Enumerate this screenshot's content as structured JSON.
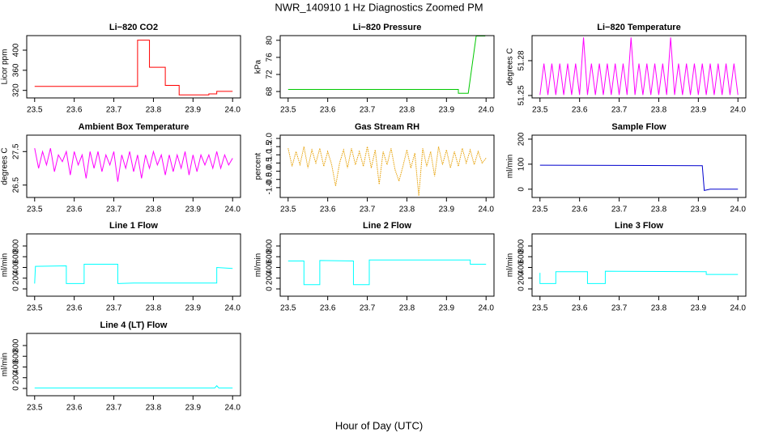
{
  "title": "NWR_140910  1 Hz Diagnostics Zoomed PM",
  "xlabel": "Hour of Day (UTC)",
  "chart_data": [
    {
      "type": "line",
      "title": "Li−820 CO2",
      "ylabel": "Licor ppm",
      "color": "#ff0000",
      "x": [
        23.5,
        23.76,
        23.76,
        23.79,
        23.79,
        23.83,
        23.83,
        23.865,
        23.865,
        23.94,
        23.94,
        23.96,
        23.96,
        24.0
      ],
      "values": [
        328,
        328,
        420,
        420,
        366,
        366,
        330,
        330,
        311,
        311,
        313,
        313,
        318,
        318
      ],
      "xlim": [
        23.48,
        24.02
      ],
      "ylim": [
        305,
        429
      ],
      "yticks": [
        320,
        360,
        400
      ],
      "xticks": [
        23.5,
        23.6,
        23.7,
        23.8,
        23.9,
        {
          "value": 24,
          "label": "24.0"
        }
      ]
    },
    {
      "type": "line",
      "title": "Li−820 Pressure",
      "ylabel": "kPa",
      "color": "#00c800",
      "x": [
        23.5,
        23.93,
        23.93,
        23.955,
        23.975,
        23.998
      ],
      "values": [
        68.5,
        68.5,
        67.6,
        67.6,
        81,
        81
      ],
      "xlim": [
        23.48,
        24.02
      ],
      "ylim": [
        66.5,
        81.1
      ],
      "yticks": [
        68,
        72,
        76,
        80
      ],
      "xticks": [
        23.5,
        23.6,
        23.7,
        23.8,
        23.9,
        {
          "value": 24,
          "label": "24.0"
        }
      ]
    },
    {
      "type": "line",
      "title": "Li−820 Temperature",
      "ylabel": "degrees C",
      "color": "#ff00ff",
      "x": [
        23.5,
        23.51,
        23.52,
        23.53,
        23.54,
        23.55,
        23.56,
        23.57,
        23.58,
        23.59,
        23.6,
        23.61,
        23.62,
        23.63,
        23.64,
        23.65,
        23.66,
        23.67,
        23.68,
        23.69,
        23.7,
        23.71,
        23.72,
        23.73,
        23.74,
        23.75,
        23.76,
        23.77,
        23.78,
        23.79,
        23.8,
        23.81,
        23.82,
        23.83,
        23.84,
        23.85,
        23.86,
        23.87,
        23.88,
        23.89,
        23.9,
        23.91,
        23.92,
        23.93,
        23.94,
        23.95,
        23.96,
        23.97,
        23.98,
        23.99,
        24.0
      ],
      "values": [
        51.2505,
        51.2775,
        51.2505,
        51.2775,
        51.2505,
        51.2775,
        51.2505,
        51.2775,
        51.2505,
        51.2775,
        51.2505,
        51.3,
        51.2505,
        51.2775,
        51.2505,
        51.2775,
        51.2505,
        51.2775,
        51.2505,
        51.2775,
        51.2505,
        51.2775,
        51.2505,
        51.3,
        51.2505,
        51.2775,
        51.2505,
        51.2775,
        51.2505,
        51.2775,
        51.2505,
        51.2775,
        51.2505,
        51.3,
        51.2505,
        51.2775,
        51.2505,
        51.2775,
        51.2505,
        51.2775,
        51.2505,
        51.2775,
        51.2505,
        51.2775,
        51.2505,
        51.2775,
        51.2505,
        51.2775,
        51.2505,
        51.2775,
        51.2505
      ],
      "xlim": [
        23.48,
        24.02
      ],
      "ylim": [
        51.2479,
        51.3016
      ],
      "yticks": [
        51.25,
        51.28
      ],
      "xticks": [
        23.5,
        23.6,
        23.7,
        23.8,
        23.9,
        {
          "value": 24,
          "label": "24.0"
        }
      ]
    },
    {
      "type": "line",
      "title": "Ambient Box Temperature",
      "ylabel": "degrees C",
      "color": "#ff00ff",
      "x": [
        23.5,
        23.51,
        23.52,
        23.53,
        23.54,
        23.55,
        23.56,
        23.57,
        23.58,
        23.59,
        23.6,
        23.61,
        23.62,
        23.63,
        23.64,
        23.65,
        23.66,
        23.67,
        23.68,
        23.69,
        23.7,
        23.71,
        23.72,
        23.73,
        23.74,
        23.75,
        23.76,
        23.77,
        23.78,
        23.79,
        23.8,
        23.81,
        23.82,
        23.83,
        23.84,
        23.85,
        23.86,
        23.87,
        23.88,
        23.89,
        23.9,
        23.91,
        23.92,
        23.93,
        23.94,
        23.95,
        23.96,
        23.97,
        23.98,
        23.99,
        24.0
      ],
      "values": [
        27.6,
        27.0,
        27.5,
        27.1,
        27.6,
        26.9,
        27.4,
        27.2,
        27.5,
        26.8,
        27.5,
        27.1,
        27.4,
        26.7,
        27.5,
        27.0,
        27.5,
        26.9,
        27.4,
        27.1,
        27.5,
        26.6,
        27.4,
        27.0,
        27.5,
        26.9,
        27.4,
        26.7,
        27.4,
        27.0,
        27.5,
        27.1,
        27.4,
        26.8,
        27.4,
        26.9,
        27.4,
        27.0,
        27.5,
        26.8,
        27.4,
        26.9,
        27.4,
        27.1,
        27.4,
        27.0,
        27.5,
        27.0,
        27.4,
        27.1,
        27.3
      ],
      "xlim": [
        23.48,
        24.02
      ],
      "ylim": [
        26.13,
        27.99
      ],
      "yticks": [
        26.5,
        27.5
      ],
      "xticks": [
        23.5,
        23.6,
        23.7,
        23.8,
        23.9,
        {
          "value": 24,
          "label": "24.0"
        }
      ]
    },
    {
      "type": "line",
      "title": "Gas Stream RH",
      "ylabel": "percent",
      "color": "#e69f00",
      "linestyle": "dotted",
      "x": [
        23.5,
        23.51,
        23.52,
        23.53,
        23.54,
        23.55,
        23.56,
        23.57,
        23.58,
        23.59,
        23.6,
        23.61,
        23.62,
        23.63,
        23.64,
        23.65,
        23.66,
        23.67,
        23.68,
        23.69,
        23.7,
        23.71,
        23.72,
        23.73,
        23.74,
        23.75,
        23.76,
        23.77,
        23.78,
        23.79,
        23.8,
        23.81,
        23.82,
        23.83,
        23.84,
        23.85,
        23.86,
        23.87,
        23.88,
        23.89,
        23.9,
        23.91,
        23.92,
        23.93,
        23.94,
        23.95,
        23.96,
        23.97,
        23.98,
        23.99,
        24.0
      ],
      "values": [
        1.4,
        0.3,
        1.2,
        0.4,
        1.5,
        0.2,
        1.3,
        0.5,
        1.4,
        0.3,
        1.2,
        0.4,
        -0.9,
        0.5,
        1.3,
        0.2,
        1.4,
        0.4,
        1.2,
        0.3,
        1.5,
        0.2,
        1.3,
        -0.8,
        1.2,
        0.4,
        1.4,
        0.1,
        -0.6,
        0.3,
        1.3,
        0.2,
        1.1,
        -1.5,
        1.4,
        0.3,
        1.2,
        -0.3,
        1.5,
        0.4,
        1.3,
        0.2,
        1.2,
        0.3,
        1.4,
        0.5,
        1.3,
        0.4,
        1.2,
        0.5,
        0.8
      ],
      "xlim": [
        23.48,
        24.02
      ],
      "ylim": [
        -1.6,
        2.2
      ],
      "yticks": [
        {
          "value": -1,
          "label": "-1.0"
        },
        -0.5,
        {
          "value": 0,
          "label": "0.0"
        },
        0.5,
        {
          "value": 1,
          "label": "1.0"
        },
        1.5,
        {
          "value": 2,
          "label": "2.0"
        }
      ],
      "xticks": [
        23.5,
        23.6,
        23.7,
        23.8,
        23.9,
        {
          "value": 24,
          "label": "24.0"
        }
      ]
    },
    {
      "type": "line",
      "title": "Sample Flow",
      "ylabel": "ml/min",
      "color": "#0000cd",
      "x": [
        23.5,
        23.7,
        23.91,
        23.915,
        23.93,
        24.0
      ],
      "values": [
        96,
        95,
        94,
        -5,
        0,
        0
      ],
      "xlim": [
        23.48,
        24.02
      ],
      "ylim": [
        -33,
        216
      ],
      "yticks": [
        0,
        100,
        200
      ],
      "xticks": [
        23.5,
        23.6,
        23.7,
        23.8,
        23.9,
        {
          "value": 24,
          "label": "24.0"
        }
      ]
    },
    {
      "type": "line",
      "title": "Line 1 Flow",
      "ylabel": "ml/min",
      "color": "#00ffff",
      "x": [
        23.5,
        23.502,
        23.58,
        23.58,
        23.625,
        23.625,
        23.71,
        23.71,
        23.75,
        23.96,
        23.96,
        24.0
      ],
      "values": [
        100,
        420,
        430,
        100,
        100,
        460,
        460,
        100,
        110,
        110,
        400,
        380
      ],
      "xlim": [
        23.48,
        24.02
      ],
      "ylim": [
        -136,
        1026
      ],
      "yticks": [
        0,
        200,
        400,
        600,
        800
      ],
      "xticks": [
        23.5,
        23.6,
        23.7,
        23.8,
        23.9,
        {
          "value": 24,
          "label": "24.0"
        }
      ]
    },
    {
      "type": "line",
      "title": "Line 2 Flow",
      "ylabel": "ml/min",
      "color": "#00ffff",
      "x": [
        23.5,
        23.54,
        23.54,
        23.58,
        23.58,
        23.665,
        23.665,
        23.705,
        23.705,
        23.96,
        23.96,
        24.0
      ],
      "values": [
        520,
        520,
        80,
        80,
        530,
        520,
        80,
        80,
        540,
        540,
        460,
        460
      ],
      "xlim": [
        23.48,
        24.02
      ],
      "ylim": [
        -136,
        1026
      ],
      "yticks": [
        0,
        200,
        400,
        600,
        800
      ],
      "xticks": [
        23.5,
        23.6,
        23.7,
        23.8,
        23.9,
        {
          "value": 24,
          "label": "24.0"
        }
      ]
    },
    {
      "type": "line",
      "title": "Line 3 Flow",
      "ylabel": "ml/min",
      "color": "#00ffff",
      "x": [
        23.5,
        23.5,
        23.54,
        23.54,
        23.62,
        23.62,
        23.665,
        23.665,
        23.92,
        23.92,
        24.0
      ],
      "values": [
        300,
        100,
        100,
        320,
        320,
        100,
        100,
        330,
        320,
        270,
        270
      ],
      "xlim": [
        23.48,
        24.02
      ],
      "ylim": [
        -136,
        1026
      ],
      "yticks": [
        0,
        200,
        400,
        600,
        800
      ],
      "xticks": [
        23.5,
        23.6,
        23.7,
        23.8,
        23.9,
        {
          "value": 24,
          "label": "24.0"
        }
      ]
    },
    {
      "type": "line",
      "title": "Line 4 (LT) Flow",
      "ylabel": "ml/min",
      "color": "#00ffff",
      "x": [
        23.5,
        23.955,
        23.96,
        23.965,
        24.0
      ],
      "values": [
        10,
        10,
        50,
        10,
        10
      ],
      "xlim": [
        23.48,
        24.02
      ],
      "ylim": [
        -136,
        1026
      ],
      "yticks": [
        0,
        200,
        400,
        600,
        800
      ],
      "xticks": [
        23.5,
        23.6,
        23.7,
        23.8,
        23.9,
        {
          "value": 24,
          "label": "24.0"
        }
      ]
    }
  ]
}
